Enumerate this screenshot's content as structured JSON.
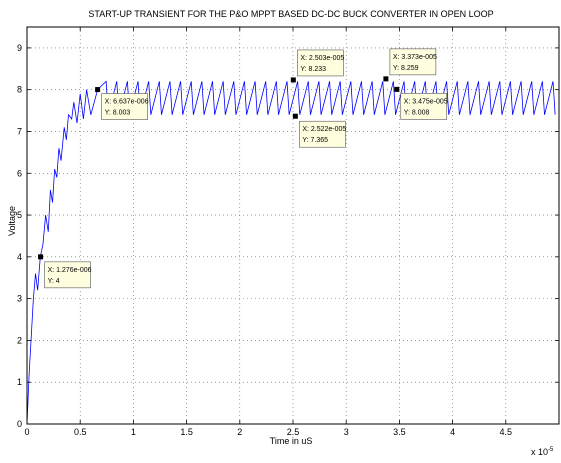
{
  "chart_data": {
    "type": "line",
    "title": "START-UP TRANSIENT FOR THE P&O MPPT BASED DC-DC BUCK CONVERTER IN OPEN LOOP",
    "xlabel": "Time in uS",
    "ylabel": "Voltage",
    "x_multiplier_label": "x 10",
    "x_multiplier_exponent": "-5",
    "xlim": [
      0,
      5e-05
    ],
    "ylim": [
      0,
      9.5
    ],
    "x_ticks": [
      0,
      5e-06,
      1e-05,
      1.5e-05,
      2e-05,
      2.5e-05,
      3e-05,
      3.5e-05,
      4e-05,
      4.5e-05
    ],
    "x_tick_labels": [
      "0",
      "0.5",
      "1",
      "1.5",
      "2",
      "2.5",
      "3",
      "3.5",
      "4",
      "4.5"
    ],
    "y_ticks": [
      0,
      1,
      2,
      3,
      4,
      5,
      6,
      7,
      8,
      9
    ],
    "y_tick_labels": [
      "0",
      "1",
      "2",
      "3",
      "4",
      "5",
      "6",
      "7",
      "8",
      "9"
    ],
    "grid": true,
    "line_color": "#0000ff",
    "annotation_fill": "#ffffe0",
    "series": [
      {
        "values": {
          "x": [
            0,
            2e-07,
            4e-07,
            6e-07,
            8e-07,
            1e-06,
            1.25e-06,
            1.5e-06,
            1.75e-06,
            2e-06,
            2.2e-06,
            2.4e-06,
            2.6e-06,
            2.8e-06,
            3e-06,
            3.2e-06,
            3.5e-06,
            3.7e-06,
            3.9e-06,
            4.2e-06,
            4.4e-06,
            4.7e-06,
            5e-06,
            5.3e-06,
            5.6e-06,
            6e-06,
            6.64e-06
          ],
          "y": [
            0,
            1.2,
            2.1,
            3.0,
            3.6,
            3.2,
            4.0,
            4.3,
            5.0,
            4.6,
            5.6,
            5.3,
            6.1,
            5.9,
            6.6,
            6.3,
            7.1,
            6.8,
            7.4,
            7.3,
            7.7,
            7.2,
            7.9,
            7.3,
            8.0,
            7.4,
            8.003
          ]
        },
        "ripple": {
          "start": 6.637e-06,
          "end": 5e-05,
          "period": 1e-06,
          "low": 7.4,
          "high": 8.2
        }
      }
    ],
    "markers": [
      {
        "x": 1.276e-06,
        "y": 4,
        "label_x": "X: 1.276e-006",
        "label_y": "Y: 4"
      },
      {
        "x": 6.637e-06,
        "y": 8.003,
        "label_x": "X: 6.637e-006",
        "label_y": "Y: 8.003"
      },
      {
        "x": 2.503e-05,
        "y": 8.233,
        "label_x": "X: 2.503e-005",
        "label_y": "Y: 8.233"
      },
      {
        "x": 2.522e-05,
        "y": 7.365,
        "label_x": "X: 2.522e-005",
        "label_y": "Y: 7.365"
      },
      {
        "x": 3.373e-05,
        "y": 8.259,
        "label_x": "X: 3.373e-005",
        "label_y": "Y: 8.259"
      },
      {
        "x": 3.475e-05,
        "y": 8.008,
        "label_x": "X: 3.475e-005",
        "label_y": "Y: 8.008"
      }
    ]
  }
}
